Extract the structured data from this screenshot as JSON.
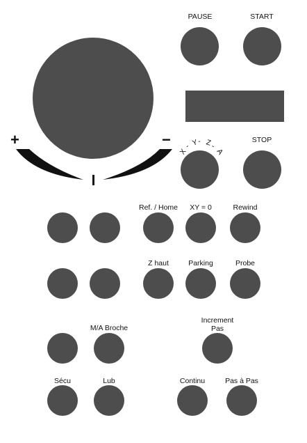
{
  "top": {
    "pause_label": "PAUSE",
    "start_label": "START",
    "stop_label": "STOP"
  },
  "jog": {
    "plus": "+",
    "minus": "−",
    "tick": "I",
    "axis_selector": [
      "X",
      "-",
      "Y",
      "-",
      "Z",
      "-",
      "A"
    ]
  },
  "row1": {
    "ref_home": "Ref. / Home",
    "xy_zero": "XY = 0",
    "rewind": "Rewind"
  },
  "row2": {
    "z_haut": "Z haut",
    "parking": "Parking",
    "probe": "Probe"
  },
  "row3": {
    "ma_broche": "M/A Broche",
    "increment_line1": "Increment",
    "increment_line2": "Pas"
  },
  "row4": {
    "secu": "Sécu",
    "lub": "Lub",
    "continu": "Continu",
    "pas_a_pas": "Pas à Pas"
  },
  "colors": {
    "button": "#4d4d4d",
    "background": "#ffffff",
    "text": "#111111"
  }
}
